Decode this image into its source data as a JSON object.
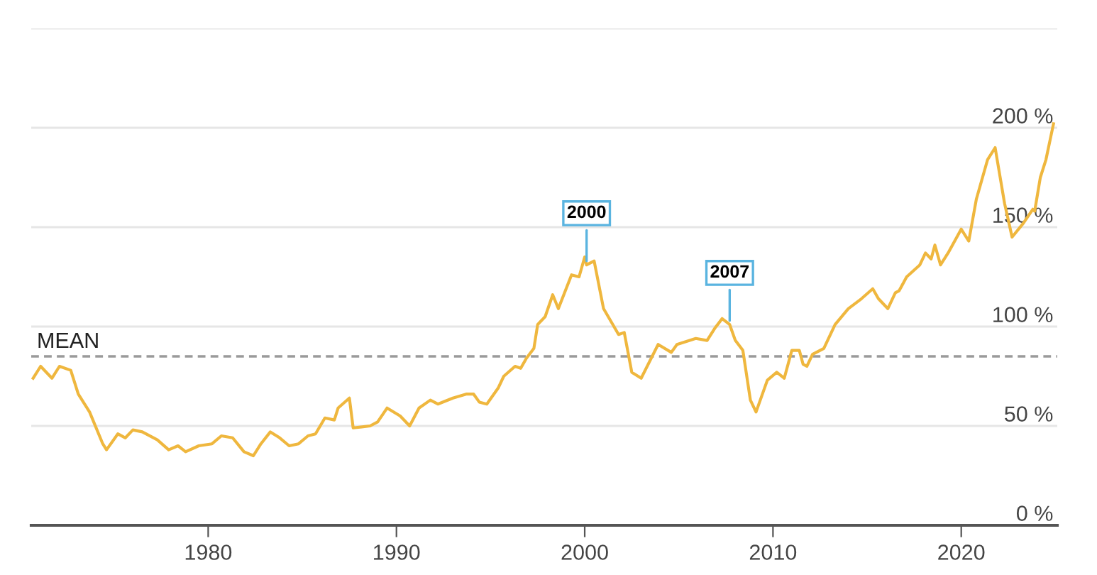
{
  "chart_data": {
    "type": "line",
    "x": [
      1970.7,
      1971.1,
      1971.7,
      1972.1,
      1972.7,
      1973.1,
      1973.7,
      1974.4,
      1974.6,
      1975.2,
      1975.6,
      1976.0,
      1976.5,
      1977.3,
      1977.9,
      1978.4,
      1978.8,
      1979.5,
      1980.2,
      1980.7,
      1981.3,
      1981.9,
      1982.4,
      1982.8,
      1983.3,
      1983.8,
      1984.3,
      1984.8,
      1985.3,
      1985.7,
      1986.2,
      1986.7,
      1986.9,
      1987.5,
      1987.7,
      1988.6,
      1989.0,
      1989.5,
      1990.2,
      1990.7,
      1991.2,
      1991.8,
      1992.2,
      1993.0,
      1993.7,
      1994.1,
      1994.4,
      1994.8,
      1995.4,
      1995.7,
      1996.3,
      1996.6,
      1996.9,
      1997.3,
      1997.5,
      1997.9,
      1998.3,
      1998.6,
      1999.3,
      1999.7,
      2000.0,
      2000.1,
      2000.5,
      2001.0,
      2001.8,
      2002.1,
      2002.5,
      2003.0,
      2003.9,
      2004.6,
      2004.9,
      2005.9,
      2006.5,
      2006.9,
      2007.3,
      2007.7,
      2008.0,
      2008.4,
      2008.8,
      2009.1,
      2009.7,
      2010.2,
      2010.6,
      2011.0,
      2011.4,
      2011.6,
      2011.8,
      2012.1,
      2012.7,
      2013.3,
      2014.0,
      2014.7,
      2015.3,
      2015.6,
      2016.1,
      2016.5,
      2016.7,
      2017.1,
      2017.8,
      2018.1,
      2018.4,
      2018.6,
      2018.9,
      2019.3,
      2020.0,
      2020.4,
      2020.8,
      2021.4,
      2021.8,
      2022.3,
      2022.7,
      2023.3,
      2023.8,
      2023.9,
      2024.2,
      2024.5,
      2024.9
    ],
    "series": [
      {
        "color": "#efb73e",
        "values": [
          74,
          80,
          74,
          80,
          78,
          66,
          57,
          41,
          38,
          46,
          44,
          48,
          47,
          43,
          38,
          40,
          37,
          40,
          41,
          45,
          44,
          37,
          35,
          41,
          47,
          44,
          40,
          41,
          45,
          46,
          54,
          53,
          59,
          64,
          49,
          50,
          52,
          59,
          55,
          50,
          59,
          63,
          61,
          64,
          66,
          66,
          62,
          61,
          69,
          75,
          80,
          79,
          84,
          89,
          101,
          105,
          116,
          109,
          126,
          125,
          135,
          131,
          133,
          109,
          96,
          97,
          77,
          74,
          91,
          87,
          91,
          94,
          93,
          99,
          104,
          101,
          93,
          88,
          63,
          57,
          73,
          77,
          74,
          88,
          88,
          81,
          80,
          86,
          89,
          101,
          109,
          114,
          119,
          114,
          109,
          117,
          118,
          125,
          131,
          137,
          134,
          141,
          131,
          137,
          149,
          143,
          164,
          184,
          190,
          162,
          145,
          152,
          159,
          158,
          175,
          184,
          202
        ]
      }
    ],
    "xlim": [
      1970.6,
      2025.1
    ],
    "xticks": [
      1980,
      1990,
      2000,
      2010,
      2020
    ],
    "ylim": [
      0,
      250
    ],
    "yticks": [
      {
        "value": 0,
        "label": "0 %"
      },
      {
        "value": 50,
        "label": "50 %"
      },
      {
        "value": 100,
        "label": "100 %"
      },
      {
        "value": 150,
        "label": "150 %"
      },
      {
        "value": 200,
        "label": "200 %"
      },
      {
        "value": 250,
        "label": null
      }
    ],
    "grid": "y",
    "ref_lines": [
      {
        "axis": "y",
        "value": 85,
        "label": "MEAN",
        "color": "#9a9a9a",
        "line_style": "dashed"
      }
    ],
    "annotations": [
      {
        "text": "2000",
        "x": 2000.1,
        "y": 131
      },
      {
        "text": "2007",
        "x": 2007.7,
        "y": 101
      }
    ]
  }
}
